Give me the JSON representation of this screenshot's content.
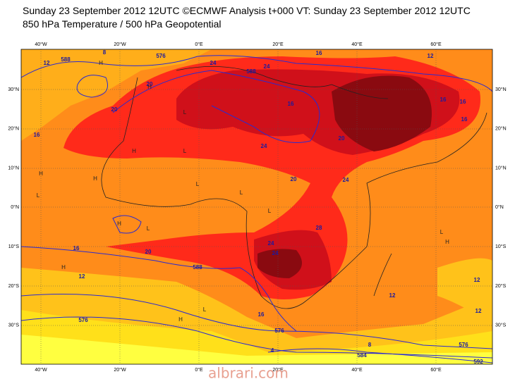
{
  "header": {
    "title": "Sunday 23 September 2012 12UTC ©ECMWF Analysis t+000 VT: Sunday 23 September 2012 12UTC",
    "subtitle": "850 hPa Temperature / 500 hPa Geopotential"
  },
  "axes": {
    "longitudes": [
      "40°W",
      "20°W",
      "0°E",
      "20°E",
      "40°E",
      "60°E"
    ],
    "latitudes": [
      "30°N",
      "20°N",
      "10°N",
      "0°N",
      "10°S",
      "20°S",
      "30°S"
    ]
  },
  "contour_labels": [
    "8",
    "12",
    "588",
    "576",
    "24",
    "20",
    "588",
    "24",
    "16",
    "16",
    "20",
    "16",
    "24",
    "20",
    "16",
    "16",
    "20",
    "24",
    "28",
    "24",
    "24",
    "20",
    "16",
    "12",
    "12",
    "16",
    "588",
    "576",
    "576",
    "584",
    "12",
    "8",
    "4",
    "16",
    "576",
    "12",
    "12",
    "592"
  ],
  "pressure_marks": [
    "H",
    "H",
    "L",
    "H",
    "L",
    "H",
    "L",
    "H",
    "L",
    "L",
    "H",
    "L",
    "L",
    "H",
    "L",
    "H",
    "L",
    "H"
  ],
  "watermark": "albrari.com"
}
